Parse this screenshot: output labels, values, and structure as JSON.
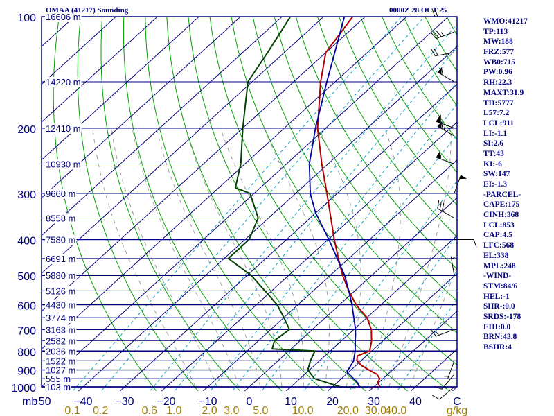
{
  "header": {
    "station": "OMAA (41217) Sounding",
    "time": "0000Z 28 OCT 25"
  },
  "indices": [
    "WMO:41217",
    "TP:113",
    "MW:188",
    "FRZ:577",
    "WB0:715",
    "PW:0.96",
    "RH:22.3",
    "MAXT:31.9",
    "TH:5777",
    "L57:7.2",
    "LCL:911",
    "LI:-1.1",
    "SI:2.6",
    "TT:43",
    "KI:-6",
    "SW:147",
    "EI:-1.3",
    "-PARCEL-",
    "CAPE:175",
    "CINH:368",
    "LCL:853",
    "CAP:4.5",
    "LFC:568",
    "EL:338",
    "MPL:248",
    "-WIND-",
    "STM:84/6",
    "HEL:-1",
    "SHR-:0.0",
    "SRDS:-178",
    "EHI:0.0",
    "BRN:43.8",
    "BSHR:4"
  ],
  "colors": {
    "temperature": "#b00000",
    "dewpoint": "#004000",
    "parcel": "#0000a0",
    "isobar": "#000080",
    "isotherm": "#000080",
    "dry_adiabat": "#00a000",
    "moist_adiabat": "#a0a0a0",
    "mixing_ratio": "#00a0c0",
    "labels": "#000080",
    "mixing_labels": "#a08000"
  },
  "chart_data": {
    "type": "line",
    "title": "OMAA (41217) Sounding",
    "x_unit": "C",
    "y_unit": "mb",
    "x_ticks": [
      "-50",
      "-40",
      "-30",
      "-20",
      "-10",
      "0",
      "10",
      "20",
      "30",
      "40",
      "C"
    ],
    "x_tick_values": [
      -50,
      -40,
      -30,
      -20,
      -10,
      0,
      10,
      20,
      30,
      40
    ],
    "xlim": [
      -50,
      50
    ],
    "ylim": [
      1000,
      100
    ],
    "pressure_ticks": [
      100,
      200,
      300,
      400,
      500,
      600,
      700,
      800,
      900,
      1000
    ],
    "height_labels": [
      {
        "p": 100,
        "label": "16606 m"
      },
      {
        "p": 150,
        "label": "14220 m"
      },
      {
        "p": 200,
        "label": "12410 m"
      },
      {
        "p": 250,
        "label": "10930 m"
      },
      {
        "p": 300,
        "label": "9660 m"
      },
      {
        "p": 350,
        "label": "8558 m"
      },
      {
        "p": 400,
        "label": "7580 m"
      },
      {
        "p": 450,
        "label": "6691 m"
      },
      {
        "p": 500,
        "label": "5880 m"
      },
      {
        "p": 550,
        "label": "5126 m"
      },
      {
        "p": 600,
        "label": "4430 m"
      },
      {
        "p": 650,
        "label": "3774 m"
      },
      {
        "p": 700,
        "label": "3163 m"
      },
      {
        "p": 750,
        "label": "2582 m"
      },
      {
        "p": 800,
        "label": "2036 m"
      },
      {
        "p": 850,
        "label": "1522 m"
      },
      {
        "p": 900,
        "label": "1027 m"
      },
      {
        "p": 950,
        "label": "555 m"
      },
      {
        "p": 1000,
        "label": "103 m"
      }
    ],
    "mixing_ratio_labels": [
      {
        "w": 0.1,
        "label": "0.1"
      },
      {
        "w": 0.2,
        "label": "0.2"
      },
      {
        "w": 0.6,
        "label": "0.6"
      },
      {
        "w": 1.0,
        "label": "1.0"
      },
      {
        "w": 2.0,
        "label": "2.0"
      },
      {
        "w": 3.0,
        "label": "3.0"
      },
      {
        "w": 5.0,
        "label": "5.0"
      },
      {
        "w": 10.0,
        "label": "10.0"
      },
      {
        "w": 20.0,
        "label": "20.0"
      },
      {
        "w": 30.0,
        "label": "30.0"
      },
      {
        "w": 40.0,
        "label": "40.0"
      }
    ],
    "mixing_ratio_unit": "g/kg",
    "series": [
      {
        "key": "temperature",
        "points": [
          [
            1006,
            29.2
          ],
          [
            1000,
            31.5
          ],
          [
            975,
            29.8
          ],
          [
            950,
            29.2
          ],
          [
            925,
            27.4
          ],
          [
            900,
            24.3
          ],
          [
            875,
            21.3
          ],
          [
            850,
            19.0
          ],
          [
            825,
            17.8
          ],
          [
            800,
            19.5
          ],
          [
            750,
            17.2
          ],
          [
            700,
            14.2
          ],
          [
            650,
            10.0
          ],
          [
            600,
            4.0
          ],
          [
            550,
            -1.5
          ],
          [
            500,
            -7.0
          ],
          [
            450,
            -12.5
          ],
          [
            400,
            -18.5
          ],
          [
            350,
            -25.0
          ],
          [
            300,
            -32.5
          ],
          [
            250,
            -41.5
          ],
          [
            200,
            -52.0
          ],
          [
            150,
            -63.5
          ],
          [
            125,
            -70.0
          ],
          [
            100,
            -73.0
          ]
        ]
      },
      {
        "key": "dewpoint",
        "points": [
          [
            1006,
            25.8
          ],
          [
            1000,
            21.9
          ],
          [
            950,
            13.5
          ],
          [
            900,
            9.6
          ],
          [
            850,
            7.8
          ],
          [
            800,
            6.3
          ],
          [
            790,
            -4.5
          ],
          [
            750,
            -6.2
          ],
          [
            700,
            -5.5
          ],
          [
            650,
            -10.0
          ],
          [
            600,
            -15.0
          ],
          [
            500,
            -29.0
          ],
          [
            450,
            -39.0
          ],
          [
            400,
            -39.0
          ],
          [
            350,
            -42.5
          ],
          [
            300,
            -51.0
          ],
          [
            290,
            -56.0
          ],
          [
            250,
            -61.0
          ],
          [
            200,
            -70.0
          ],
          [
            150,
            -81.0
          ],
          [
            125,
            -84.0
          ],
          [
            100,
            -88.0
          ]
        ]
      },
      {
        "key": "parcel",
        "points": [
          [
            1006,
            26.8
          ],
          [
            975,
            25.0
          ],
          [
            911,
            19.5
          ],
          [
            853,
            18.3
          ],
          [
            800,
            16.0
          ],
          [
            700,
            10.4
          ],
          [
            600,
            3.0
          ],
          [
            568,
            0.2
          ],
          [
            500,
            -6.5
          ],
          [
            400,
            -19.8
          ],
          [
            338,
            -30.2
          ],
          [
            300,
            -36.5
          ],
          [
            250,
            -44.5
          ],
          [
            200,
            -52.5
          ],
          [
            150,
            -62.0
          ],
          [
            100,
            -75.0
          ]
        ]
      }
    ],
    "wind_barbs": [
      {
        "p": 1000,
        "dir": 230,
        "spd": 10
      },
      {
        "p": 925,
        "dir": 220,
        "spd": 10
      },
      {
        "p": 850,
        "dir": 200,
        "spd": 5
      },
      {
        "p": 700,
        "dir": 250,
        "spd": 15
      },
      {
        "p": 500,
        "dir": 350,
        "spd": 5
      },
      {
        "p": 400,
        "dir": 90,
        "spd": 10
      },
      {
        "p": 350,
        "dir": 300,
        "spd": 30
      },
      {
        "p": 300,
        "dir": 20,
        "spd": 50
      },
      {
        "p": 250,
        "dir": 290,
        "spd": 55
      },
      {
        "p": 210,
        "dir": 300,
        "spd": 65
      },
      {
        "p": 200,
        "dir": 290,
        "spd": 60
      },
      {
        "p": 150,
        "dir": 300,
        "spd": 60
      },
      {
        "p": 125,
        "dir": 260,
        "spd": 20
      },
      {
        "p": 110,
        "dir": 250,
        "spd": 35
      },
      {
        "p": 100,
        "dir": 270,
        "spd": 20
      }
    ]
  }
}
